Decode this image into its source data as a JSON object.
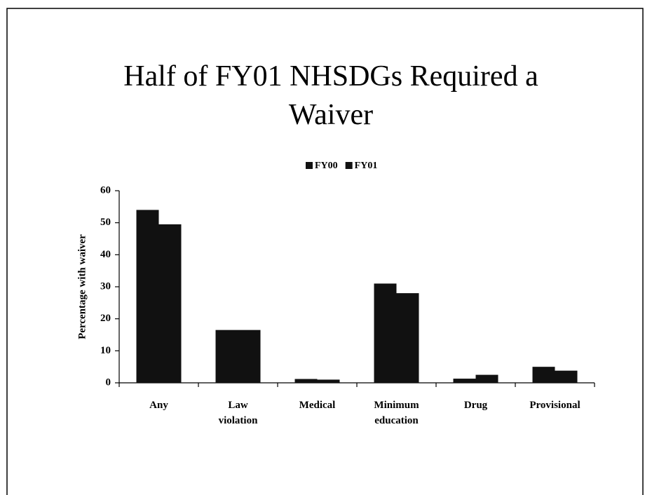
{
  "chart_data": {
    "type": "bar",
    "title": [
      "Half of FY01 NHSDGs Required a",
      "Waiver"
    ],
    "ylabel": "Percentage with waiver",
    "categories": [
      "Any",
      "Law violation",
      "Medical",
      "Minimum education",
      "Drug",
      "Provisional"
    ],
    "series": [
      {
        "name": "FY00",
        "color": "#111111",
        "values": [
          54,
          16.5,
          1.2,
          31,
          1.3,
          5
        ]
      },
      {
        "name": "FY01",
        "color": "#111111",
        "values": [
          49.5,
          16.5,
          1,
          28,
          2.5,
          3.8
        ]
      }
    ],
    "ylim": [
      0,
      60
    ],
    "yticks": [
      0,
      10,
      20,
      30,
      40,
      50,
      60
    ],
    "legend": "top"
  }
}
